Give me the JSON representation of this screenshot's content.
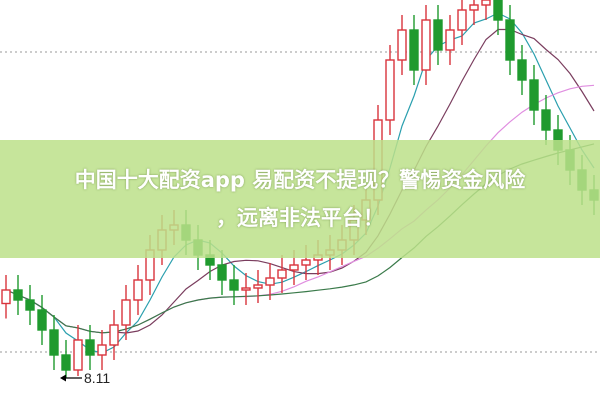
{
  "banner": {
    "line1": "中国十大配资app 易配资不提现？警惕资金风险",
    "line2": "，远离非法平台！"
  },
  "chart_data": {
    "type": "candlestick",
    "title": "",
    "ylim": [
      7.67,
      15.67
    ],
    "gridlines": [
      14.63,
      8.63
    ],
    "grid": "dotted horizontal",
    "up_color": "#d9343c",
    "down_color": "#1f9a2e",
    "annotation": {
      "label": "8.11",
      "value": 8.11,
      "candle_index": 5
    },
    "moving_averages": [
      {
        "period": 5,
        "color": "#2a9fae"
      },
      {
        "period": 10,
        "color": "#7a3d5e"
      },
      {
        "period": 20,
        "color": "#e08ee0"
      },
      {
        "period": 30,
        "color": "#3a7a4a"
      }
    ],
    "open": [
      9.6,
      9.87,
      9.67,
      9.47,
      9.07,
      8.57,
      8.27,
      8.87,
      8.57,
      8.77,
      9.17,
      9.67,
      10.07,
      10.67,
      11.07,
      11.17,
      10.87,
      10.57,
      10.37,
      10.07,
      9.87,
      9.91,
      9.97,
      10.11,
      10.27,
      10.37,
      10.47,
      10.57,
      10.67,
      10.87,
      11.27,
      11.67,
      13.27,
      14.47,
      15.07,
      14.27,
      15.27,
      14.67,
      15.07,
      15.47,
      15.57,
      15.67,
      15.27,
      14.47,
      14.07,
      13.47,
      13.07,
      12.67,
      12.27,
      11.87
    ],
    "close": [
      9.87,
      9.67,
      9.47,
      9.07,
      8.57,
      8.27,
      8.87,
      8.57,
      8.77,
      9.17,
      9.67,
      10.07,
      10.67,
      11.07,
      11.17,
      10.87,
      10.57,
      10.37,
      10.07,
      9.87,
      9.91,
      9.97,
      10.11,
      10.27,
      10.37,
      10.47,
      10.57,
      10.67,
      10.87,
      11.27,
      11.67,
      13.27,
      14.47,
      15.07,
      14.27,
      15.27,
      14.67,
      15.07,
      15.47,
      15.57,
      15.67,
      15.27,
      14.47,
      14.07,
      13.47,
      13.07,
      12.67,
      12.27,
      11.87,
      11.67
    ],
    "high": [
      10.17,
      10.17,
      9.97,
      9.77,
      9.37,
      8.87,
      9.17,
      9.17,
      9.07,
      9.47,
      9.97,
      10.37,
      10.97,
      11.37,
      11.47,
      11.47,
      11.17,
      10.87,
      10.67,
      10.37,
      10.21,
      10.27,
      10.41,
      10.57,
      10.67,
      10.77,
      10.87,
      10.97,
      11.17,
      11.57,
      11.97,
      13.57,
      14.77,
      15.37,
      15.37,
      15.57,
      15.57,
      15.37,
      15.77,
      15.87,
      15.97,
      15.97,
      15.57,
      14.77,
      14.37,
      13.77,
      13.37,
      12.97,
      12.57,
      12.17
    ],
    "low": [
      9.3,
      9.37,
      9.17,
      8.77,
      8.27,
      8.11,
      8.15,
      8.27,
      8.27,
      8.47,
      8.87,
      9.37,
      9.77,
      10.37,
      10.77,
      10.57,
      10.27,
      10.07,
      9.77,
      9.57,
      9.57,
      9.61,
      9.67,
      9.81,
      9.97,
      10.07,
      10.17,
      10.27,
      10.37,
      10.57,
      10.97,
      11.37,
      12.97,
      14.17,
      13.97,
      13.97,
      14.37,
      14.37,
      14.77,
      15.17,
      15.27,
      14.97,
      14.17,
      13.77,
      13.17,
      12.77,
      12.37,
      11.97,
      11.57,
      11.37
    ]
  }
}
